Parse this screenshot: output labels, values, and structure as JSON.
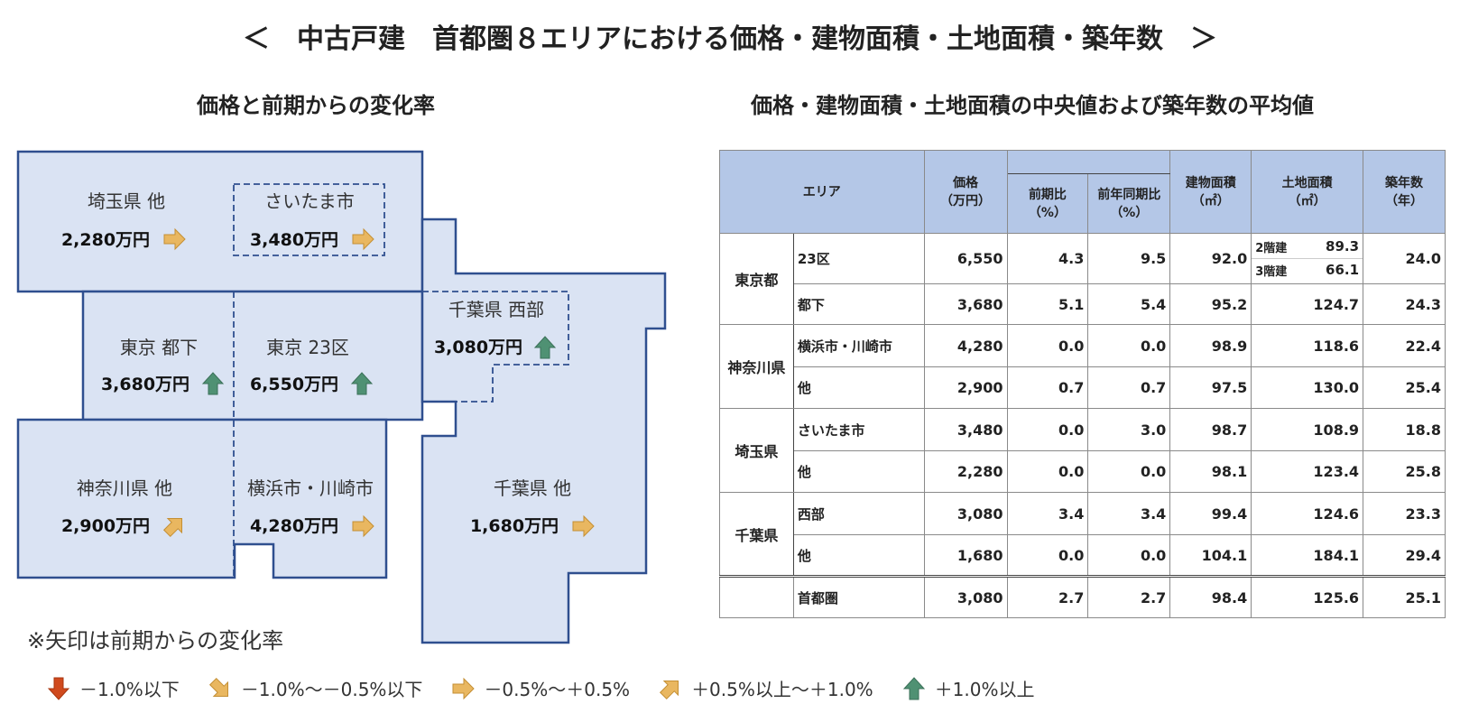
{
  "title": "＜　中古戸建　首都圏８エリアにおける価格・建物面積・土地面積・築年数　＞",
  "map_subtitle": "価格と前期からの変化率",
  "table_subtitle": "価格・建物面積・土地面積の中央値および築年数の平均値",
  "colors": {
    "region_fill": "#dae3f3",
    "region_border": "#2f4f8f",
    "header_fill": "#b4c7e7",
    "arrow_up": "#4f9173",
    "arrow_flat": "#e9b760",
    "arrow_down": "#d04a1e"
  },
  "regions": [
    {
      "id": "saitama-other",
      "name": "埼玉県 他",
      "price": "2,280万円",
      "arrow": "flat-right-icon"
    },
    {
      "id": "saitama-city",
      "name": "さいたま市",
      "price": "3,480万円",
      "arrow": "flat-right-icon"
    },
    {
      "id": "tokyo-other",
      "name": "東京 都下",
      "price": "3,680万円",
      "arrow": "up-icon"
    },
    {
      "id": "tokyo-23",
      "name": "東京 23区",
      "price": "6,550万円",
      "arrow": "up-icon"
    },
    {
      "id": "chiba-west",
      "name": "千葉県 西部",
      "price": "3,080万円",
      "arrow": "up-icon"
    },
    {
      "id": "kanagawa-other",
      "name": "神奈川県 他",
      "price": "2,900万円",
      "arrow": "slight-up-icon"
    },
    {
      "id": "yokohama",
      "name": "横浜市・川崎市",
      "price": "4,280万円",
      "arrow": "flat-right-icon"
    },
    {
      "id": "chiba-other",
      "name": "千葉県 他",
      "price": "1,680万円",
      "arrow": "flat-right-icon"
    }
  ],
  "table": {
    "headers": {
      "area": "エリア",
      "price": "価格",
      "price_unit": "（万円）",
      "qoq": "前期比",
      "qoq_unit": "（%）",
      "yoy": "前年同期比",
      "yoy_unit": "（%）",
      "building": "建物面積",
      "building_unit": "（㎡）",
      "land": "土地面積",
      "land_unit": "（㎡）",
      "age": "築年数",
      "age_unit": "（年）"
    },
    "groups": [
      {
        "pref": "東京都",
        "rows": [
          {
            "sub": "23区",
            "price": "6,550",
            "qoq": "4.3",
            "yoy": "9.5",
            "building": "92.0",
            "land_split": [
              {
                "label": "2階建",
                "value": "89.3"
              },
              {
                "label": "3階建",
                "value": "66.1"
              }
            ],
            "age": "24.0"
          },
          {
            "sub": "都下",
            "price": "3,680",
            "qoq": "5.1",
            "yoy": "5.4",
            "building": "95.2",
            "land": "124.7",
            "age": "24.3"
          }
        ]
      },
      {
        "pref": "神奈川県",
        "rows": [
          {
            "sub": "横浜市・川崎市",
            "price": "4,280",
            "qoq": "0.0",
            "yoy": "0.0",
            "building": "98.9",
            "land": "118.6",
            "age": "22.4"
          },
          {
            "sub": "他",
            "price": "2,900",
            "qoq": "0.7",
            "yoy": "0.7",
            "building": "97.5",
            "land": "130.0",
            "age": "25.4"
          }
        ]
      },
      {
        "pref": "埼玉県",
        "rows": [
          {
            "sub": "さいたま市",
            "price": "3,480",
            "qoq": "0.0",
            "yoy": "3.0",
            "building": "98.7",
            "land": "108.9",
            "age": "18.8"
          },
          {
            "sub": "他",
            "price": "2,280",
            "qoq": "0.0",
            "yoy": "0.0",
            "building": "98.1",
            "land": "123.4",
            "age": "25.8"
          }
        ]
      },
      {
        "pref": "千葉県",
        "rows": [
          {
            "sub": "西部",
            "price": "3,080",
            "qoq": "3.4",
            "yoy": "3.4",
            "building": "99.4",
            "land": "124.6",
            "age": "23.3"
          },
          {
            "sub": "他",
            "price": "1,680",
            "qoq": "0.0",
            "yoy": "0.0",
            "building": "104.1",
            "land": "184.1",
            "age": "29.4"
          }
        ]
      }
    ],
    "total": {
      "sub": "首都圏",
      "price": "3,080",
      "qoq": "2.7",
      "yoy": "2.7",
      "building": "98.4",
      "land": "125.6",
      "age": "25.1"
    }
  },
  "note": "※矢印は前期からの変化率",
  "legend": [
    {
      "icon": "down-icon",
      "label": "－1.0%以下"
    },
    {
      "icon": "slight-down-icon",
      "label": "－1.0%～－0.5%以下"
    },
    {
      "icon": "flat-right-icon",
      "label": "－0.5%～＋0.5%"
    },
    {
      "icon": "slight-up-icon",
      "label": "＋0.5%以上～＋1.0%"
    },
    {
      "icon": "up-icon",
      "label": "＋1.0%以上"
    }
  ]
}
